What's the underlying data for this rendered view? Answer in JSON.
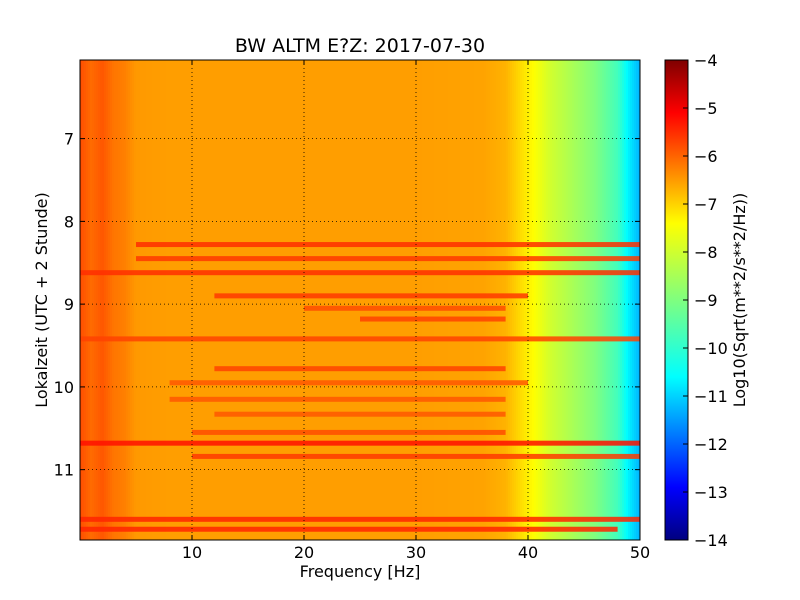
{
  "chart_data": {
    "type": "heatmap",
    "title": "BW ALTM E?Z: 2017-07-30",
    "xlabel": "Frequency [Hz]",
    "ylabel": "Lokalzeit (UTC + 2 Stunde)",
    "xlim": [
      0,
      50
    ],
    "ylim": [
      6.05,
      11.85
    ],
    "y_inverted": true,
    "x_ticks": [
      10,
      20,
      30,
      40,
      50
    ],
    "x_tick_labels": [
      "10",
      "20",
      "30",
      "40",
      "50"
    ],
    "y_ticks": [
      7,
      8,
      9,
      10,
      11
    ],
    "y_tick_labels": [
      "7",
      "8",
      "9",
      "10",
      "11"
    ],
    "grid": true,
    "colormap": "jet",
    "colorbar": {
      "label": "Log10(Sqrt(m**2/s**2/Hz))",
      "range": [
        -14,
        -4
      ],
      "ticks": [
        -4,
        -5,
        -6,
        -7,
        -8,
        -9,
        -10,
        -11,
        -12,
        -13,
        -14
      ],
      "tick_labels": [
        "−4",
        "−5",
        "−6",
        "−7",
        "−8",
        "−9",
        "−10",
        "−11",
        "−12",
        "−13",
        "−14"
      ]
    },
    "frequency_profile": {
      "frequency_hz": [
        0,
        1,
        2,
        3,
        4,
        5,
        8,
        10,
        20,
        30,
        36,
        38,
        40,
        42,
        44,
        46,
        48,
        49,
        50
      ],
      "level": [
        -6.0,
        -6.3,
        -6.1,
        -6.4,
        -6.5,
        -6.75,
        -6.8,
        -6.8,
        -6.8,
        -6.8,
        -6.85,
        -7.0,
        -7.6,
        -8.2,
        -8.6,
        -9.0,
        -9.6,
        -10.4,
        -11.0
      ]
    },
    "high_amplitude_bands": [
      {
        "time": 8.28,
        "f_start": 5,
        "f_end": 50,
        "level": -5.7
      },
      {
        "time": 8.45,
        "f_start": 5,
        "f_end": 50,
        "level": -5.8
      },
      {
        "time": 8.62,
        "f_start": 0,
        "f_end": 50,
        "level": -5.7
      },
      {
        "time": 8.9,
        "f_start": 12,
        "f_end": 40,
        "level": -5.8
      },
      {
        "time": 9.05,
        "f_start": 20,
        "f_end": 38,
        "level": -6.0
      },
      {
        "time": 9.18,
        "f_start": 25,
        "f_end": 38,
        "level": -5.9
      },
      {
        "time": 9.42,
        "f_start": 0,
        "f_end": 50,
        "level": -5.9
      },
      {
        "time": 9.78,
        "f_start": 12,
        "f_end": 38,
        "level": -5.9
      },
      {
        "time": 9.95,
        "f_start": 8,
        "f_end": 40,
        "level": -6.1
      },
      {
        "time": 10.15,
        "f_start": 8,
        "f_end": 38,
        "level": -6.1
      },
      {
        "time": 10.33,
        "f_start": 12,
        "f_end": 38,
        "level": -6.1
      },
      {
        "time": 10.55,
        "f_start": 10,
        "f_end": 38,
        "level": -6.0
      },
      {
        "time": 10.68,
        "f_start": 0,
        "f_end": 50,
        "level": -5.4
      },
      {
        "time": 10.84,
        "f_start": 10,
        "f_end": 50,
        "level": -5.8
      },
      {
        "time": 11.6,
        "f_start": 0,
        "f_end": 50,
        "level": -5.6
      },
      {
        "time": 11.72,
        "f_start": 0,
        "f_end": 48,
        "level": -5.6
      }
    ]
  }
}
